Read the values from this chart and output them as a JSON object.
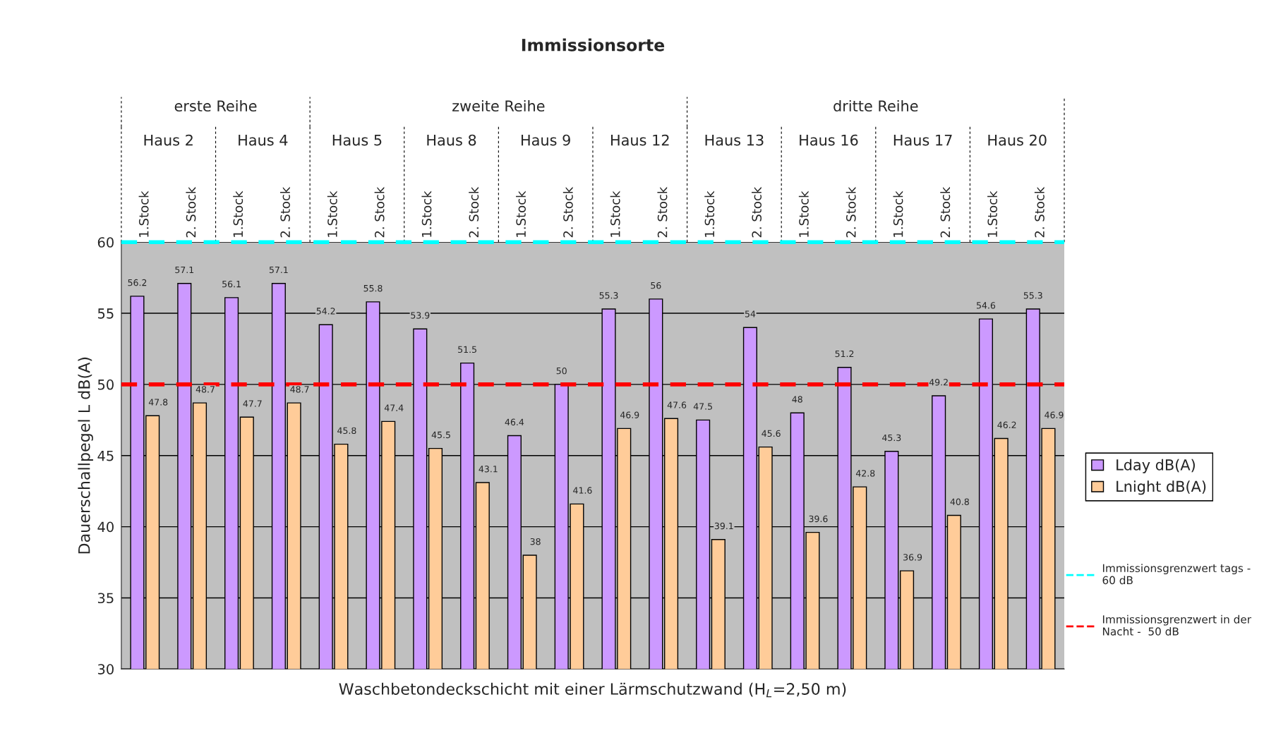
{
  "chart_data": {
    "type": "bar",
    "title": "Immissionsorte",
    "xlabel": "Waschbetondeckschicht mit einer Lärmschutzwand (H$_{L}$=2,50 m)",
    "ylabel": "Dauerschallpegel L dB(A)",
    "categories": [
      "1.Stock",
      "2. Stock",
      "1.Stock",
      "2. Stock",
      "1.Stock",
      "2. Stock",
      "1.Stock",
      "2. Stock",
      "1.Stock",
      "2. Stock",
      "1.Stock",
      "2. Stock",
      "1.Stock",
      "2. Stock",
      "1.Stock",
      "2. Stock",
      "1.Stock",
      "2. Stock",
      "1.Stock",
      "2. Stock"
    ],
    "series": [
      {
        "name": "Lday dB(A)",
        "color": "#cc99ff",
        "values": [
          56.2,
          57.1,
          56.1,
          57.1,
          54.2,
          55.8,
          53.9,
          51.5,
          46.4,
          50,
          55.3,
          56,
          47.5,
          54,
          48,
          51.2,
          45.3,
          49.2,
          54.6,
          55.3
        ]
      },
      {
        "name": "Lnight dB(A)",
        "color": "#ffcc99",
        "values": [
          47.8,
          48.7,
          47.7,
          48.7,
          45.8,
          47.4,
          45.5,
          43.1,
          38,
          41.6,
          46.9,
          47.6,
          39.1,
          45.6,
          39.6,
          42.8,
          36.9,
          40.8,
          46.2,
          46.9
        ]
      }
    ],
    "ylim": [
      30,
      60
    ],
    "yticks": [
      30,
      35,
      40,
      45,
      50,
      55,
      60
    ],
    "grid": "y",
    "legend": "right",
    "data_labels": true,
    "ref_lines": [
      {
        "axis": "y",
        "value": 60,
        "label": "Immissionsgrenzwert tags -  60 dB",
        "color": "#00ffff",
        "line_style": "dashed"
      },
      {
        "axis": "y",
        "value": 50,
        "label": "Immissionsgrenzwert in der Nacht -  50 dB",
        "color": "#ff0000",
        "line_style": "dashed"
      }
    ],
    "annotations": [
      "erste Reihe",
      "zweite Reihe",
      "dritte Reihe",
      "Haus 2",
      "Haus 4",
      "Haus 5",
      "Haus 8",
      "Haus 9",
      "Haus 12",
      "Haus 13",
      "Haus 16",
      "Haus 17",
      "Haus 20"
    ]
  }
}
